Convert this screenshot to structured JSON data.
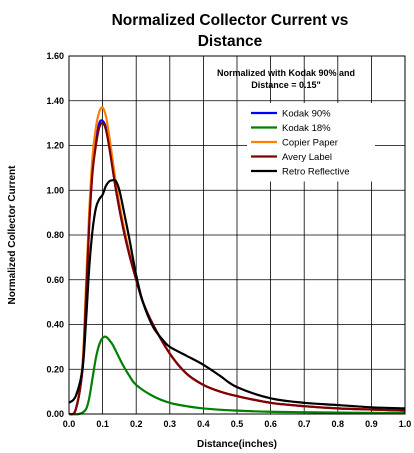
{
  "chart_data": {
    "type": "line",
    "title_lines": [
      "Normalized Collector Current vs",
      "Distance"
    ],
    "xlabel": "Distance(inches)",
    "ylabel": "Normalized Collector Current",
    "xlim": [
      0.0,
      1.0
    ],
    "ylim": [
      0.0,
      1.6
    ],
    "x_ticks": [
      "0.0",
      "0.1",
      "0.2",
      "0.3",
      "0.4",
      "0.5",
      "0.6",
      "0.7",
      "0.8",
      "0.9",
      "1.0"
    ],
    "y_ticks": [
      "0.00",
      "0.20",
      "0.40",
      "0.60",
      "0.80",
      "1.00",
      "1.20",
      "1.40",
      "1.60"
    ],
    "grid": true,
    "legend_position": "top-right",
    "annotation_lines": [
      "Normalized with Kodak 90% and",
      "Distance = 0.15\""
    ],
    "series": [
      {
        "name": "Kodak 90%",
        "color": "#0000ff",
        "x": [
          0.0,
          0.02,
          0.04,
          0.05,
          0.06,
          0.07,
          0.08,
          0.09,
          0.1,
          0.11,
          0.12,
          0.14,
          0.16,
          0.18,
          0.2,
          0.22,
          0.25,
          0.3,
          0.35,
          0.4,
          0.45,
          0.5,
          0.6,
          0.7,
          0.8,
          0.9,
          1.0
        ],
        "y": [
          0.0,
          0.02,
          0.2,
          0.5,
          0.85,
          1.1,
          1.22,
          1.3,
          1.31,
          1.28,
          1.2,
          1.0,
          0.84,
          0.71,
          0.6,
          0.5,
          0.4,
          0.27,
          0.18,
          0.13,
          0.1,
          0.08,
          0.05,
          0.035,
          0.025,
          0.02,
          0.015
        ]
      },
      {
        "name": "Kodak 18%",
        "color": "#008000",
        "x": [
          0.0,
          0.03,
          0.05,
          0.06,
          0.07,
          0.08,
          0.09,
          0.1,
          0.11,
          0.12,
          0.13,
          0.14,
          0.16,
          0.18,
          0.2,
          0.25,
          0.3,
          0.35,
          0.4,
          0.5,
          0.6,
          0.7,
          0.8,
          0.9,
          1.0
        ],
        "y": [
          0.0,
          0.0,
          0.02,
          0.07,
          0.16,
          0.25,
          0.31,
          0.34,
          0.345,
          0.33,
          0.31,
          0.28,
          0.22,
          0.17,
          0.13,
          0.08,
          0.05,
          0.035,
          0.025,
          0.015,
          0.01,
          0.008,
          0.006,
          0.005,
          0.004
        ]
      },
      {
        "name": "Copier Paper",
        "color": "#ff8000",
        "x": [
          0.0,
          0.02,
          0.04,
          0.05,
          0.06,
          0.07,
          0.08,
          0.09,
          0.1,
          0.11,
          0.12,
          0.14,
          0.16,
          0.18,
          0.2,
          0.22,
          0.25,
          0.3,
          0.35,
          0.4,
          0.45,
          0.5,
          0.6,
          0.7,
          0.8,
          0.9,
          1.0
        ],
        "y": [
          0.0,
          0.02,
          0.22,
          0.55,
          0.9,
          1.15,
          1.28,
          1.35,
          1.37,
          1.33,
          1.24,
          1.03,
          0.86,
          0.72,
          0.6,
          0.5,
          0.4,
          0.27,
          0.18,
          0.13,
          0.1,
          0.08,
          0.05,
          0.035,
          0.025,
          0.02,
          0.015
        ]
      },
      {
        "name": "Avery Label",
        "color": "#800000",
        "x": [
          0.0,
          0.02,
          0.04,
          0.05,
          0.06,
          0.07,
          0.08,
          0.09,
          0.1,
          0.11,
          0.12,
          0.14,
          0.16,
          0.18,
          0.2,
          0.22,
          0.25,
          0.3,
          0.35,
          0.4,
          0.45,
          0.5,
          0.6,
          0.7,
          0.8,
          0.9,
          1.0
        ],
        "y": [
          0.0,
          0.02,
          0.2,
          0.5,
          0.84,
          1.08,
          1.2,
          1.28,
          1.3,
          1.27,
          1.19,
          1.0,
          0.84,
          0.71,
          0.6,
          0.5,
          0.4,
          0.27,
          0.18,
          0.13,
          0.1,
          0.08,
          0.05,
          0.035,
          0.025,
          0.02,
          0.015
        ]
      },
      {
        "name": "Retro Reflective",
        "color": "#000000",
        "x": [
          0.0,
          0.02,
          0.04,
          0.05,
          0.06,
          0.07,
          0.08,
          0.09,
          0.1,
          0.11,
          0.12,
          0.13,
          0.14,
          0.15,
          0.16,
          0.18,
          0.2,
          0.22,
          0.25,
          0.28,
          0.3,
          0.35,
          0.4,
          0.45,
          0.5,
          0.6,
          0.7,
          0.8,
          0.9,
          1.0
        ],
        "y": [
          0.05,
          0.08,
          0.2,
          0.4,
          0.65,
          0.82,
          0.92,
          0.96,
          0.98,
          1.02,
          1.04,
          1.045,
          1.04,
          1.0,
          0.93,
          0.78,
          0.62,
          0.5,
          0.39,
          0.33,
          0.3,
          0.26,
          0.22,
          0.17,
          0.12,
          0.07,
          0.05,
          0.04,
          0.03,
          0.025
        ]
      }
    ]
  }
}
